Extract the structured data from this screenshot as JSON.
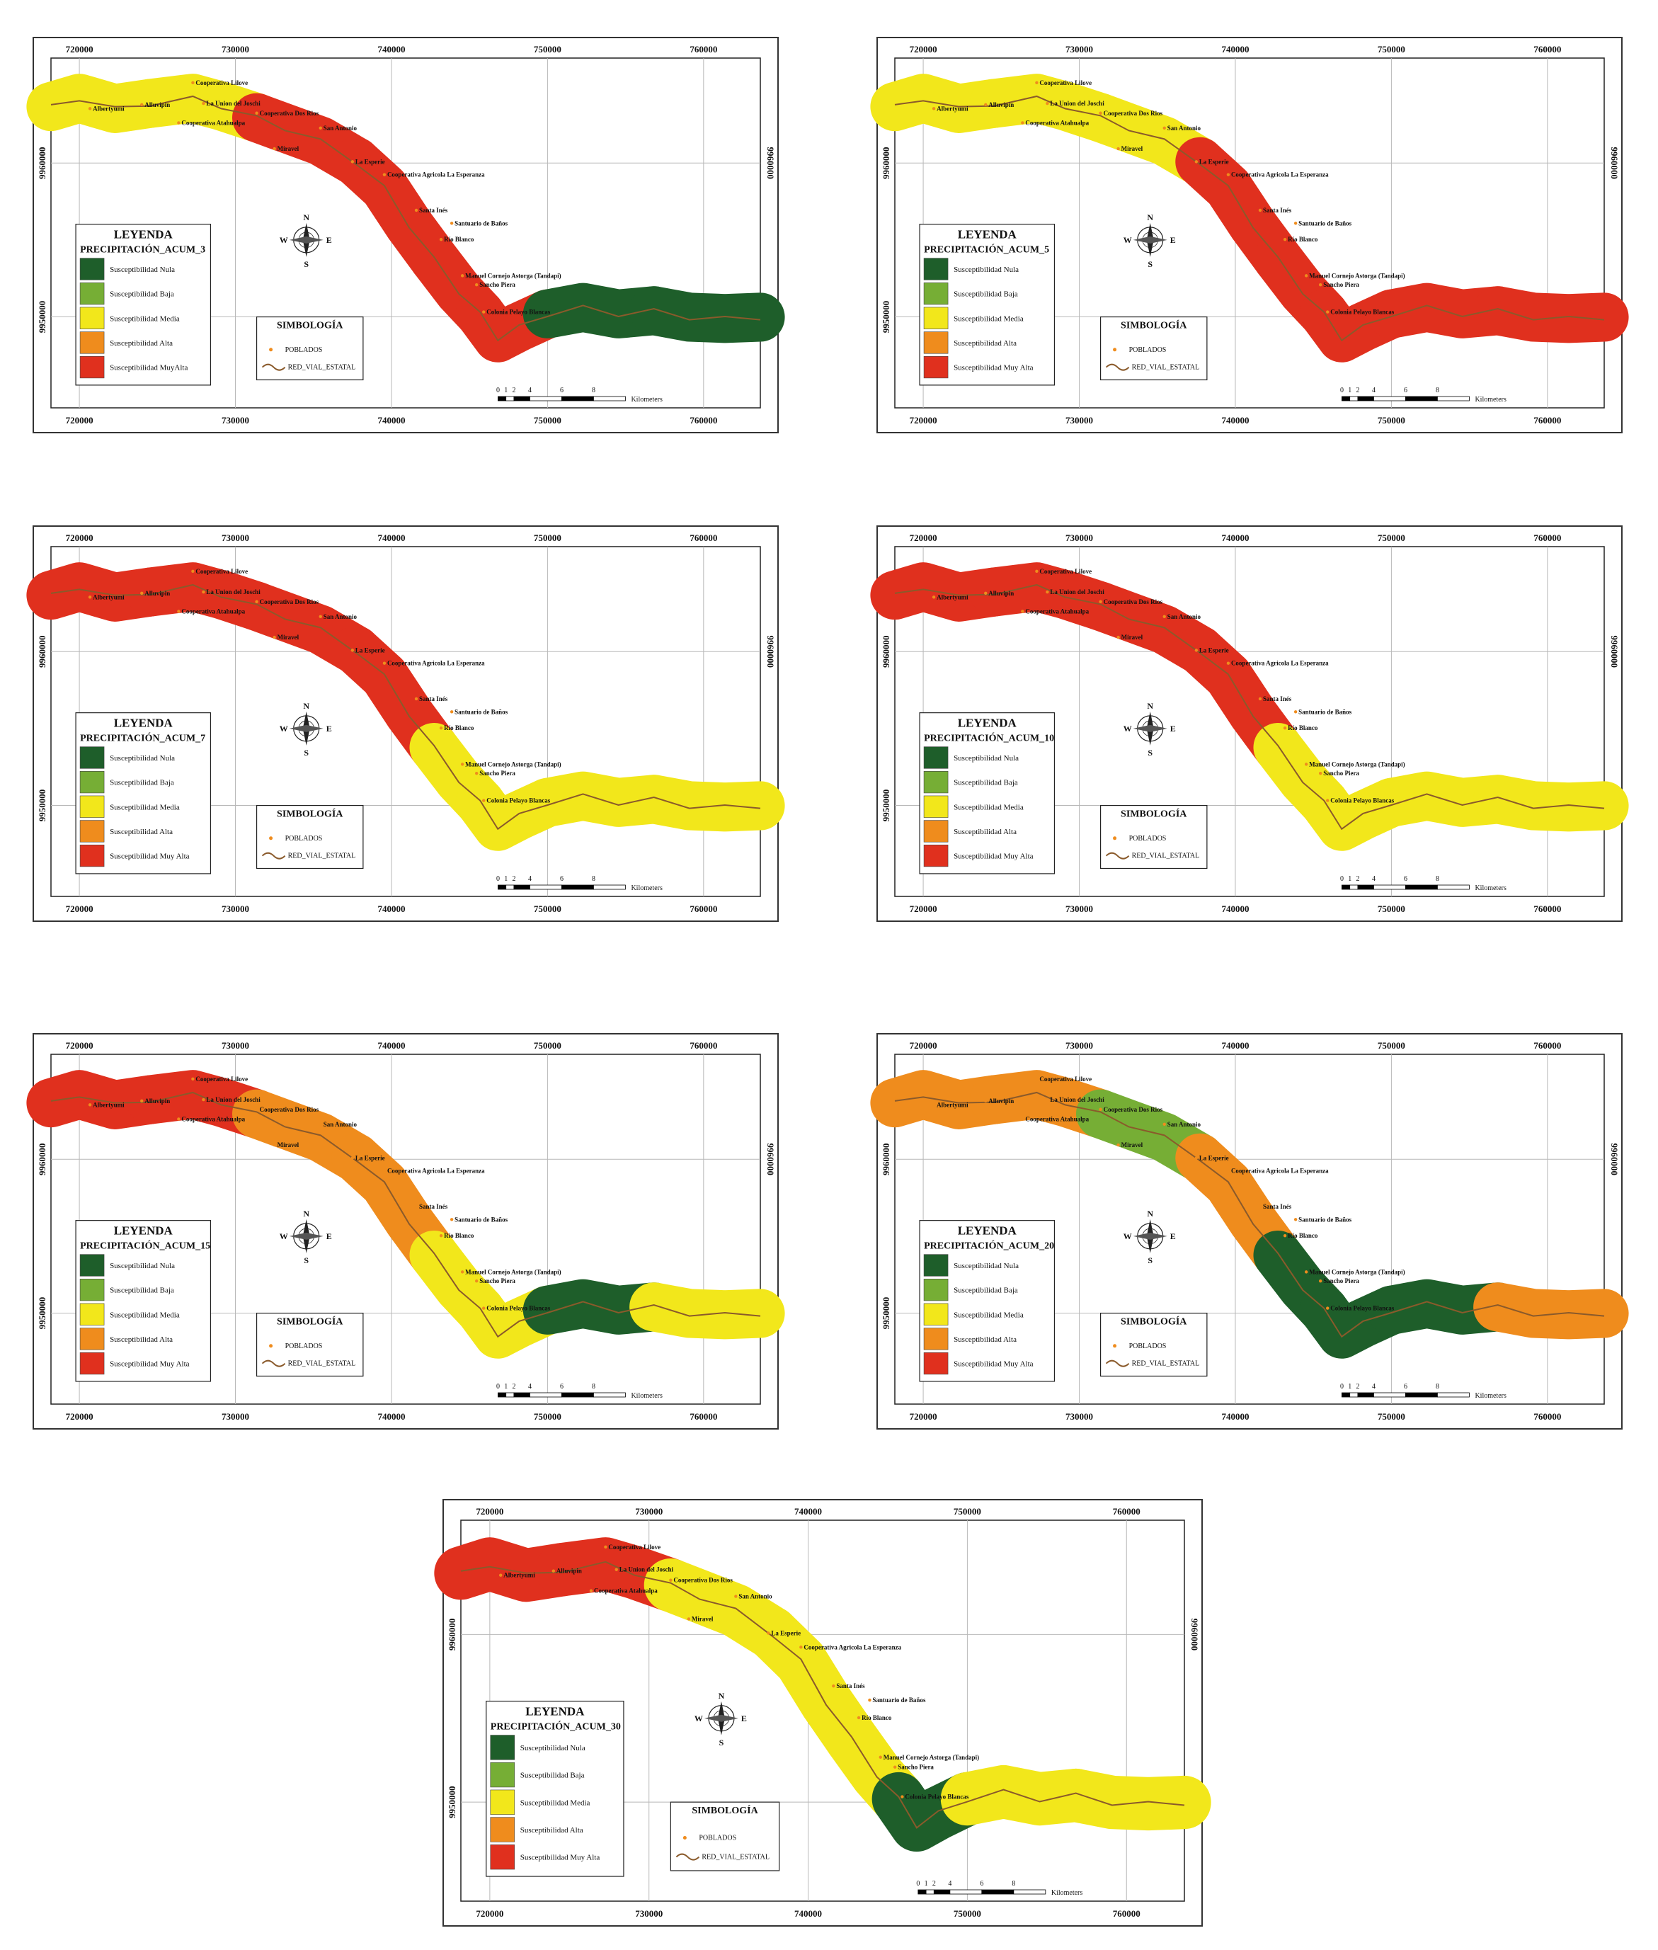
{
  "x_ticks": [
    "720000",
    "730000",
    "740000",
    "750000",
    "760000"
  ],
  "y_ticks": [
    "9960000",
    "9950000"
  ],
  "towns": [
    "Cooperativa Lilove",
    "Albertyumi",
    "Alluvipin",
    "La Union del Joschi",
    "Cooperativa Dos Rios",
    "Cooperativa Atahualpa",
    "San Antonio",
    "Miravel",
    "La Esperie",
    "Cooperativa Agricola La Esperanza",
    "Santa Inés",
    "Santuario de Baños",
    "Río Blanco",
    "Manuel Cornejo Astorga (Tandapi)",
    "Sancho Piera",
    "Colonia Pelayo Blancas"
  ],
  "legend": {
    "title": "LEYENDA",
    "classes": [
      "Susceptibilidad Nula",
      "Susceptibilidad Baja",
      "Susceptibilidad Media",
      "Susceptibilidad Alta",
      "Susceptibilidad Muy Alta"
    ],
    "colors": [
      "#1e5e2a",
      "#76ae35",
      "#f2e71b",
      "#ef8c1d",
      "#e0301e"
    ]
  },
  "simbologia": {
    "title": "SIMBOLOGÍA",
    "poblados": "POBLADOS",
    "red_vial": "RED_VIAL_ESTATAL",
    "road_color": "#8a5a2b"
  },
  "compass": {
    "n": "N",
    "s": "S",
    "e": "E",
    "w": "W"
  },
  "scale": {
    "ticks": [
      "0",
      "1",
      "2",
      "4",
      "6",
      "8"
    ],
    "unit": "Kilometers"
  },
  "maps": [
    {
      "subtitle": "PRECIPITACIÓN_ACUM_3",
      "legend_last": "Susceptibilidad MuyAlta",
      "zones": [
        "yellow",
        "yellow",
        "red",
        "red",
        "red",
        "red",
        "green",
        "green"
      ]
    },
    {
      "subtitle": "PRECIPITACIÓN_ACUM_5",
      "legend_last": "Susceptibilidad Muy Alta",
      "zones": [
        "yellow",
        "yellow",
        "yellow",
        "red",
        "red",
        "red",
        "red",
        "red"
      ]
    },
    {
      "subtitle": "PRECIPITACIÓN_ACUM_7",
      "legend_last": "Susceptibilidad Muy Alta",
      "zones": [
        "red",
        "red",
        "red",
        "red",
        "yellow",
        "yellow",
        "yellow",
        "yellow"
      ]
    },
    {
      "subtitle": "PRECIPITACIÓN_ACUM_10",
      "legend_last": "Susceptibilidad Muy Alta",
      "zones": [
        "red",
        "red",
        "red",
        "red",
        "yellow",
        "yellow",
        "yellow",
        "yellow"
      ]
    },
    {
      "subtitle": "PRECIPITACIÓN_ACUM_15",
      "legend_last": "Susceptibilidad Muy Alta",
      "zones": [
        "red",
        "red",
        "orange",
        "orange",
        "yellow",
        "yellow",
        "green",
        "yellow"
      ]
    },
    {
      "subtitle": "PRECIPITACIÓN_ACUM_20",
      "legend_last": "Susceptibilidad Muy Alta",
      "zones": [
        "orange",
        "orange",
        "lightgreen",
        "orange",
        "green",
        "green",
        "green",
        "orange"
      ]
    },
    {
      "subtitle": "PRECIPITACIÓN_ACUM_30",
      "legend_last": "Susceptibilidad Muy Alta",
      "zones": [
        "red",
        "red",
        "yellow",
        "yellow",
        "yellow",
        "green",
        "yellow",
        "yellow"
      ]
    }
  ]
}
